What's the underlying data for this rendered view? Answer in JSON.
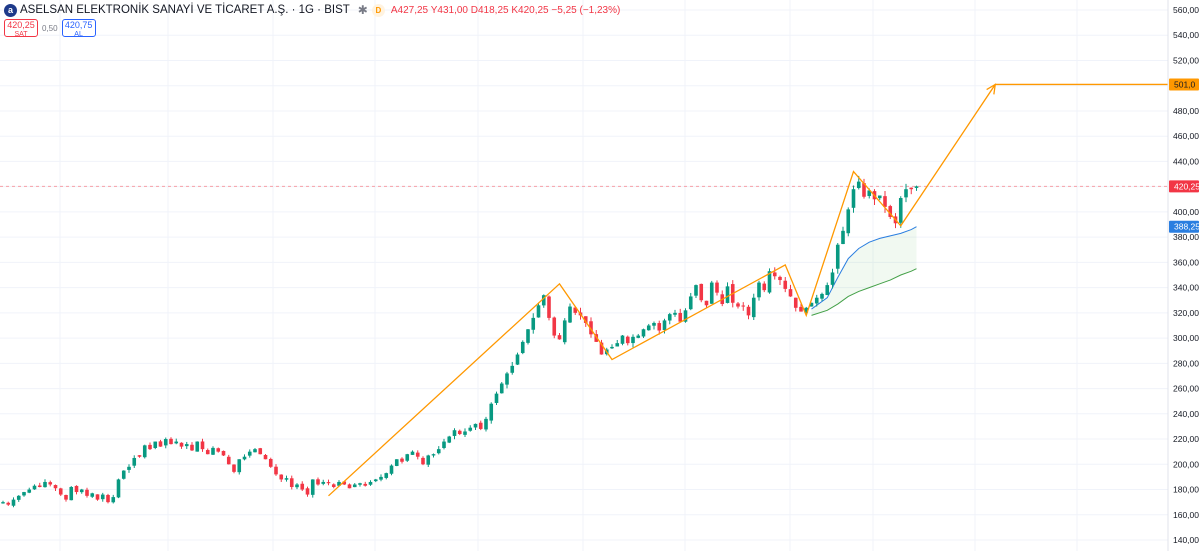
{
  "header": {
    "logo_letter": "a",
    "title": "ASELSAN ELEKTRONİK SANAYİ VE TİCARET A.Ş. · 1G · BIST",
    "settings_icon": "asterisk-icon",
    "data_badge": "D",
    "ohlc": {
      "open": "A427,25",
      "high": "Y431,00",
      "low": "D418,25",
      "close": "K420,25",
      "change": "−5,25 (−1,23%)"
    }
  },
  "trade": {
    "sell_price": "420,25",
    "sell_label": "SAT",
    "spread": "0,50",
    "buy_price": "420,75",
    "buy_label": "AL"
  },
  "chart_data": {
    "type": "candlestick",
    "y_axis_ticks": [
      "560,00",
      "540,00",
      "520,00",
      "500,00",
      "480,00",
      "460,00",
      "440,00",
      "420,00",
      "400,00",
      "380,00",
      "360,00",
      "340,00",
      "320,00",
      "300,00",
      "280,00",
      "260,00",
      "240,00",
      "220,00",
      "200,00",
      "180,00",
      "160,00",
      "140,00"
    ],
    "ylim": [
      140,
      565
    ],
    "grid": true,
    "price_labels": [
      {
        "text": "501,0",
        "value": 501,
        "color": "#ff9800"
      },
      {
        "text": "420,25",
        "value": 420.25,
        "color": "#f23645"
      },
      {
        "text": "388,25",
        "value": 388.25,
        "color": "#2a7ee0"
      }
    ],
    "current_price_line": 420.25,
    "candles": {
      "close": [
        170,
        168,
        172,
        175,
        178,
        180,
        183,
        182,
        186,
        184,
        181,
        176,
        172,
        182,
        178,
        180,
        175,
        177,
        172,
        176,
        170,
        174,
        188,
        195,
        198,
        205,
        206,
        215,
        212,
        218,
        214,
        220,
        216,
        218,
        214,
        216,
        211,
        218,
        212,
        208,
        213,
        210,
        207,
        200,
        194,
        204,
        206,
        210,
        212,
        208,
        204,
        198,
        192,
        188,
        189,
        182,
        184,
        180,
        176,
        188,
        184,
        186,
        185,
        182,
        186,
        184,
        181,
        184,
        185,
        183,
        186,
        188,
        190,
        193,
        199,
        204,
        202,
        208,
        210,
        206,
        200,
        207,
        208,
        212,
        218,
        222,
        227,
        224,
        226,
        229,
        232,
        228,
        236,
        248,
        256,
        264,
        272,
        278,
        287,
        297,
        307,
        316,
        326,
        334,
        316,
        302,
        299,
        314,
        325,
        320,
        318,
        312,
        303,
        297,
        287,
        291,
        293,
        296,
        302,
        296,
        301,
        302,
        307,
        310,
        312,
        306,
        314,
        319,
        320,
        313,
        322,
        333,
        342,
        330,
        326,
        344,
        336,
        327,
        341,
        328,
        325,
        325,
        318,
        332,
        344,
        338,
        353,
        349,
        346,
        339,
        333,
        324,
        321,
        324,
        328,
        332,
        335,
        342,
        352,
        374,
        385,
        402,
        418,
        424,
        412,
        417,
        410,
        413,
        404,
        396,
        391,
        411,
        418,
        418,
        420.25
      ]
    },
    "ma_upper": [
      {
        "i": 154,
        "v": 323
      },
      {
        "i": 157,
        "v": 332
      },
      {
        "i": 159,
        "v": 348
      },
      {
        "i": 161,
        "v": 363
      },
      {
        "i": 163,
        "v": 371
      },
      {
        "i": 165,
        "v": 376
      },
      {
        "i": 167,
        "v": 379
      },
      {
        "i": 169,
        "v": 381
      },
      {
        "i": 171,
        "v": 383
      },
      {
        "i": 173,
        "v": 386
      },
      {
        "i": 174,
        "v": 388.25
      }
    ],
    "ma_lower": [
      {
        "i": 154,
        "v": 318
      },
      {
        "i": 157,
        "v": 322
      },
      {
        "i": 159,
        "v": 327
      },
      {
        "i": 161,
        "v": 333
      },
      {
        "i": 163,
        "v": 337
      },
      {
        "i": 165,
        "v": 340
      },
      {
        "i": 167,
        "v": 343
      },
      {
        "i": 169,
        "v": 346
      },
      {
        "i": 171,
        "v": 350
      },
      {
        "i": 173,
        "v": 353
      },
      {
        "i": 174,
        "v": 355
      }
    ],
    "drawing_path": [
      {
        "i": 62,
        "v": 175
      },
      {
        "i": 106,
        "v": 343
      },
      {
        "i": 116,
        "v": 283
      },
      {
        "i": 149,
        "v": 358
      },
      {
        "i": 153,
        "v": 318
      },
      {
        "i": 162,
        "v": 432
      },
      {
        "i": 171,
        "v": 389
      },
      {
        "i": 189,
        "v": 501
      },
      {
        "i": 225,
        "v": 501
      }
    ]
  }
}
